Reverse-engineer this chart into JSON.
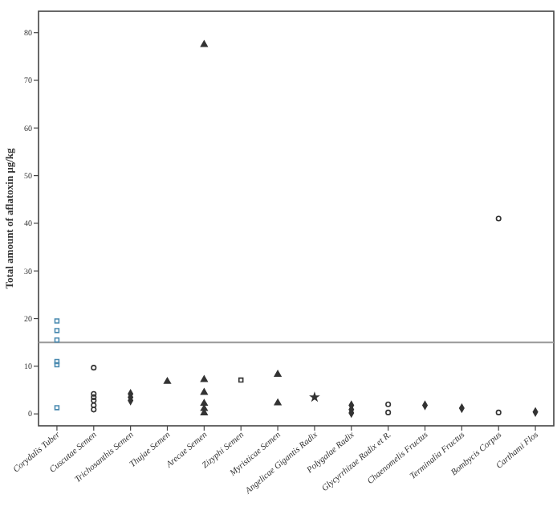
{
  "chart_data": {
    "type": "scatter",
    "ylabel": "Total amount of aflatoxin μg/kg",
    "categories": [
      "Corydalis Tuber",
      "Cuscutae Semen",
      "Trichosanthis Semen",
      "Thujae Semen",
      "Arecae Semen",
      "Zizyphi Semen",
      "Myristicae Semen",
      "Angelicae Gigantis Radix",
      "Polygalae Radix",
      "Glycyrrhizae Radix et R.",
      "Chaenomelis Fructus",
      "Terminalia Fructus",
      "Bombycis Corpus",
      "Carthami Flos"
    ],
    "ylim": [
      -2.5,
      84.5
    ],
    "yticks": [
      0,
      10,
      20,
      30,
      40,
      50,
      60,
      70,
      80
    ],
    "grid": false,
    "ref_lines": [
      {
        "axis": "y",
        "value": 15,
        "color": "#999999"
      }
    ],
    "series": [
      {
        "color": "#4a8ab0",
        "marker": "square",
        "x": [
          "Corydalis Tuber",
          "Corydalis Tuber",
          "Corydalis Tuber",
          "Corydalis Tuber",
          "Corydalis Tuber",
          "Corydalis Tuber"
        ],
        "values": [
          19.5,
          17.5,
          15.5,
          11,
          10.3,
          1.3
        ]
      },
      {
        "color": "#333333",
        "marker": "circle",
        "x": [
          "Cuscutae Semen",
          "Cuscutae Semen",
          "Cuscutae Semen",
          "Cuscutae Semen",
          "Cuscutae Semen",
          "Cuscutae Semen"
        ],
        "values": [
          9.7,
          4.2,
          3.5,
          2.8,
          1.8,
          0.9
        ]
      },
      {
        "color": "#333333",
        "marker": "diamond",
        "x": [
          "Trichosanthis Semen",
          "Trichosanthis Semen",
          "Trichosanthis Semen"
        ],
        "values": [
          4.2,
          3.5,
          2.8
        ]
      },
      {
        "color": "#333333",
        "marker": "triangle",
        "x": [
          "Thujae Semen"
        ],
        "values": [
          6.8
        ]
      },
      {
        "color": "#333333",
        "marker": "triangle",
        "x": [
          "Arecae Semen",
          "Arecae Semen",
          "Arecae Semen",
          "Arecae Semen",
          "Arecae Semen",
          "Arecae Semen"
        ],
        "values": [
          77.5,
          7.2,
          4.5,
          2.2,
          1.1,
          0.2
        ]
      },
      {
        "color": "#333333",
        "marker": "square",
        "x": [
          "Zizyphi Semen"
        ],
        "values": [
          7.1
        ]
      },
      {
        "color": "#333333",
        "marker": "triangle",
        "x": [
          "Myristicae Semen",
          "Myristicae Semen"
        ],
        "values": [
          8.3,
          2.3
        ]
      },
      {
        "color": "#333333",
        "marker": "star",
        "x": [
          "Angelicae Gigantis Radix"
        ],
        "values": [
          3.5
        ]
      },
      {
        "color": "#333333",
        "marker": "diamond",
        "x": [
          "Polygalae Radix",
          "Polygalae Radix",
          "Polygalae Radix"
        ],
        "values": [
          1.8,
          0.9,
          0.2
        ]
      },
      {
        "color": "#333333",
        "marker": "circle",
        "x": [
          "Glycyrrhizae Radix et R.",
          "Glycyrrhizae Radix et R."
        ],
        "values": [
          2.0,
          0.3
        ]
      },
      {
        "color": "#333333",
        "marker": "diamond",
        "x": [
          "Chaenomelis Fructus"
        ],
        "values": [
          1.8
        ]
      },
      {
        "color": "#333333",
        "marker": "diamond",
        "x": [
          "Terminalia Fructus"
        ],
        "values": [
          1.2
        ]
      },
      {
        "color": "#333333",
        "marker": "circle",
        "x": [
          "Bombycis Corpus",
          "Bombycis Corpus"
        ],
        "values": [
          41,
          0.3
        ]
      },
      {
        "color": "#333333",
        "marker": "diamond",
        "x": [
          "Carthami Flos"
        ],
        "values": [
          0.4
        ]
      }
    ]
  }
}
